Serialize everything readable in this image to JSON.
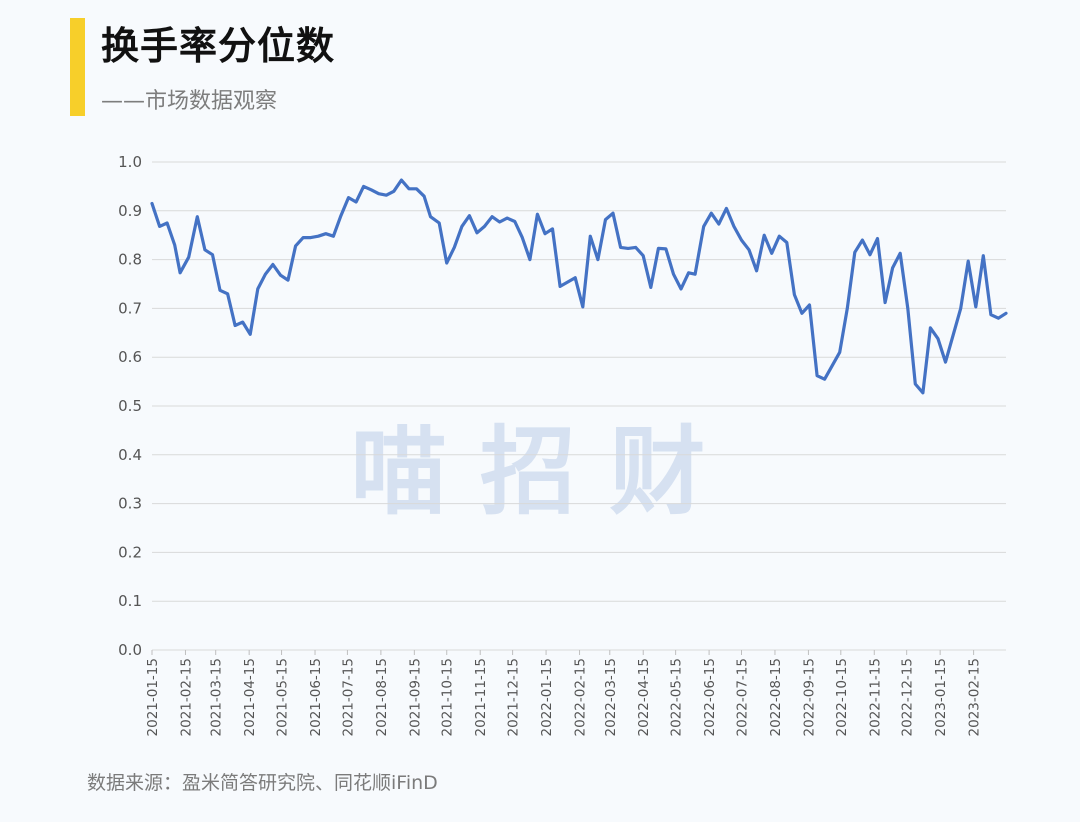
{
  "header": {
    "title": "换手率分位数",
    "subtitle": "——市场数据观察"
  },
  "watermark": "喵 招 财",
  "footer": {
    "source": "数据来源：盈米简答研究院、同花顺iFinD"
  },
  "colors": {
    "accent": "#f7cf2a",
    "line": "#4472c4",
    "grid": "#d9d9d9"
  },
  "chart_data": {
    "type": "line",
    "title": "",
    "xlabel": "",
    "ylabel": "",
    "ylim": [
      0,
      1.0
    ],
    "yticks": [
      "0.0",
      "0.1",
      "0.2",
      "0.3",
      "0.4",
      "0.5",
      "0.6",
      "0.7",
      "0.8",
      "0.9",
      "1.0"
    ],
    "grid": true,
    "legend": "none",
    "xticks": [
      "2021-01-15",
      "2021-02-15",
      "2021-03-15",
      "2021-04-15",
      "2021-05-15",
      "2021-06-15",
      "2021-07-15",
      "2021-08-15",
      "2021-09-15",
      "2021-10-15",
      "2021-11-15",
      "2021-12-15",
      "2022-01-15",
      "2022-02-15",
      "2022-03-15",
      "2022-04-15",
      "2022-05-15",
      "2022-06-15",
      "2022-07-15",
      "2022-08-15",
      "2022-09-15",
      "2022-10-15",
      "2022-11-15",
      "2022-12-15",
      "2023-01-15",
      "2023-02-15"
    ],
    "x_end": "2023-03-17",
    "series": [
      {
        "name": "",
        "x": [
          "2021-01-15",
          "2021-01-22",
          "2021-01-29",
          "2021-02-05",
          "2021-02-10",
          "2021-02-18",
          "2021-02-26",
          "2021-03-05",
          "2021-03-12",
          "2021-03-19",
          "2021-03-26",
          "2021-04-02",
          "2021-04-09",
          "2021-04-16",
          "2021-04-23",
          "2021-04-30",
          "2021-05-07",
          "2021-05-14",
          "2021-05-21",
          "2021-05-28",
          "2021-06-04",
          "2021-06-11",
          "2021-06-18",
          "2021-06-25",
          "2021-07-02",
          "2021-07-09",
          "2021-07-16",
          "2021-07-23",
          "2021-07-30",
          "2021-08-06",
          "2021-08-13",
          "2021-08-20",
          "2021-08-27",
          "2021-09-03",
          "2021-09-10",
          "2021-09-17",
          "2021-09-24",
          "2021-09-30",
          "2021-10-08",
          "2021-10-15",
          "2021-10-22",
          "2021-10-29",
          "2021-11-05",
          "2021-11-12",
          "2021-11-19",
          "2021-11-26",
          "2021-12-03",
          "2021-12-10",
          "2021-12-17",
          "2021-12-24",
          "2021-12-31",
          "2022-01-07",
          "2022-01-14",
          "2022-01-21",
          "2022-01-28",
          "2022-02-11",
          "2022-02-18",
          "2022-02-25",
          "2022-03-04",
          "2022-03-11",
          "2022-03-18",
          "2022-03-25",
          "2022-04-01",
          "2022-04-08",
          "2022-04-15",
          "2022-04-22",
          "2022-04-29",
          "2022-05-06",
          "2022-05-13",
          "2022-05-20",
          "2022-05-27",
          "2022-06-02",
          "2022-06-10",
          "2022-06-17",
          "2022-06-24",
          "2022-07-01",
          "2022-07-08",
          "2022-07-15",
          "2022-07-22",
          "2022-07-29",
          "2022-08-05",
          "2022-08-12",
          "2022-08-19",
          "2022-08-26",
          "2022-09-02",
          "2022-09-09",
          "2022-09-16",
          "2022-09-23",
          "2022-09-30",
          "2022-10-14",
          "2022-10-21",
          "2022-10-28",
          "2022-11-04",
          "2022-11-11",
          "2022-11-18",
          "2022-11-25",
          "2022-12-02",
          "2022-12-09",
          "2022-12-16",
          "2022-12-23",
          "2022-12-30",
          "2023-01-06",
          "2023-01-13",
          "2023-01-20",
          "2023-02-03",
          "2023-02-10",
          "2023-02-17",
          "2023-02-24",
          "2023-03-03",
          "2023-03-10",
          "2023-03-17"
        ],
        "values": [
          0.915,
          0.868,
          0.875,
          0.83,
          0.773,
          0.805,
          0.888,
          0.82,
          0.81,
          0.737,
          0.73,
          0.665,
          0.672,
          0.647,
          0.74,
          0.77,
          0.79,
          0.768,
          0.758,
          0.828,
          0.845,
          0.845,
          0.848,
          0.853,
          0.848,
          0.89,
          0.927,
          0.918,
          0.95,
          0.943,
          0.935,
          0.932,
          0.94,
          0.963,
          0.945,
          0.945,
          0.93,
          0.888,
          0.875,
          0.793,
          0.825,
          0.868,
          0.89,
          0.855,
          0.868,
          0.888,
          0.877,
          0.885,
          0.878,
          0.845,
          0.8,
          0.893,
          0.853,
          0.863,
          0.745,
          0.763,
          0.703,
          0.848,
          0.8,
          0.882,
          0.895,
          0.825,
          0.823,
          0.825,
          0.808,
          0.743,
          0.823,
          0.822,
          0.77,
          0.74,
          0.773,
          0.77,
          0.868,
          0.895,
          0.873,
          0.905,
          0.868,
          0.84,
          0.82,
          0.777,
          0.85,
          0.813,
          0.848,
          0.835,
          0.728,
          0.69,
          0.707,
          0.562,
          0.555,
          0.61,
          0.7,
          0.815,
          0.84,
          0.81,
          0.843,
          0.712,
          0.783,
          0.813,
          0.7,
          0.545,
          0.527,
          0.66,
          0.638,
          0.59,
          0.7,
          0.797,
          0.703,
          0.808,
          0.687,
          0.68,
          0.69
        ]
      }
    ]
  }
}
